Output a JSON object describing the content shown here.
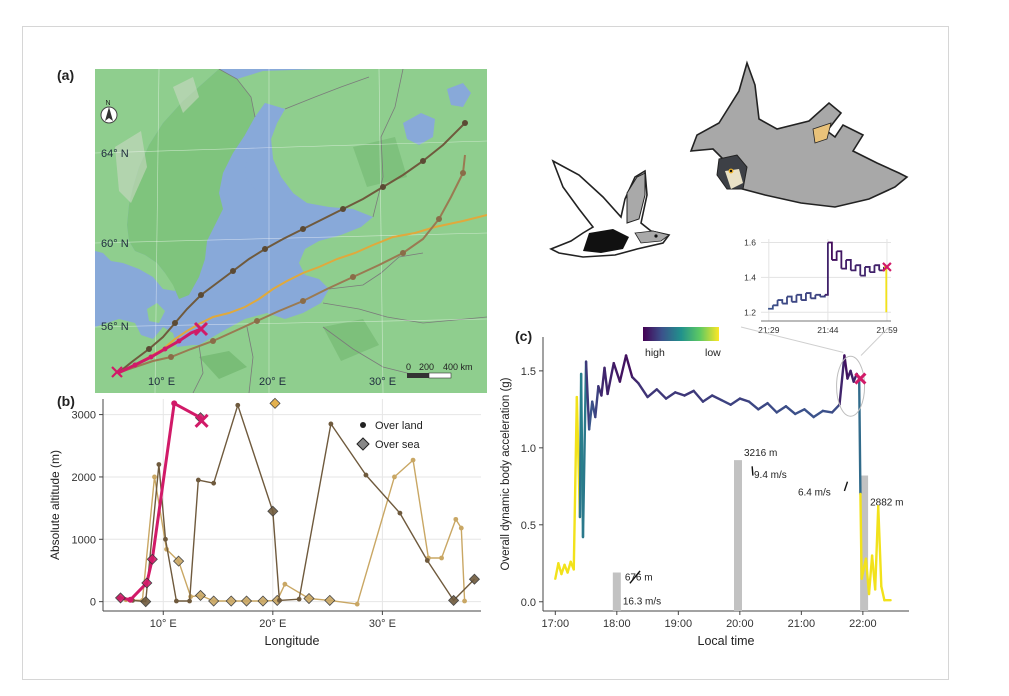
{
  "panels": {
    "a": {
      "label": "(a)",
      "lat_labels": [
        "64° N",
        "60° N",
        "56° N"
      ],
      "lon_labels": [
        "10° E",
        "20° E",
        "30° E"
      ],
      "scale": {
        "ticks": [
          "0",
          "200",
          "400 km"
        ]
      },
      "north_symbol": "N",
      "colors": {
        "water": "#88a9d9",
        "land": "#8fce8e",
        "land_dark": "#6bb268",
        "relief": "#c9d9c3"
      }
    },
    "b": {
      "label": "(b)"
    },
    "c": {
      "label": "(c)"
    }
  },
  "colors": {
    "magenta": "#d11a68",
    "brown_dark": "#6f5a3d",
    "brown": "#9a7a52",
    "tan": "#c9a764",
    "orange": "#e0a93c",
    "yellow": "#f2e21b",
    "bar": "#c2c2c2"
  },
  "chart_data": [
    {
      "type": "scatter",
      "panel": "b",
      "xlabel": "Longitude",
      "ylabel": "Absolute altitude (m)",
      "x_ticks": [
        "10° E",
        "20° E",
        "30° E"
      ],
      "xlim": [
        4.5,
        39
      ],
      "ylim": [
        -150,
        3250
      ],
      "y_ticks": [
        0,
        1000,
        2000,
        3000
      ],
      "grid": true,
      "legend": {
        "position": "top-right",
        "entries": [
          "Over land",
          "Over sea"
        ]
      },
      "series": [
        {
          "color": "#d11a68",
          "points": [
            [
              6.1,
              60,
              "sea"
            ],
            [
              7.0,
              30,
              "land"
            ],
            [
              8.5,
              300,
              "sea"
            ],
            [
              9.0,
              680,
              "sea"
            ],
            [
              11.0,
              3180,
              "land"
            ],
            [
              13.4,
              2950,
              "sea"
            ],
            [
              13.5,
              2900,
              "land"
            ]
          ]
        },
        {
          "color": "#6f5a3d",
          "points": [
            [
              6.0,
              60,
              "land"
            ],
            [
              7.2,
              20,
              "land"
            ],
            [
              8.4,
              0,
              "sea"
            ],
            [
              9.6,
              2200,
              "land"
            ],
            [
              10.2,
              1000,
              "land"
            ],
            [
              11.2,
              10,
              "land"
            ],
            [
              12.4,
              10,
              "land"
            ],
            [
              13.2,
              1950,
              "land"
            ],
            [
              14.6,
              1900,
              "land"
            ],
            [
              16.8,
              3150,
              "land"
            ],
            [
              20.0,
              1450,
              "sea"
            ],
            [
              20.6,
              20,
              "land"
            ],
            [
              22.4,
              40,
              "land"
            ],
            [
              25.3,
              2850,
              "land"
            ],
            [
              28.5,
              2030,
              "land"
            ],
            [
              31.6,
              1420,
              "land"
            ],
            [
              34.1,
              660,
              "land"
            ],
            [
              36.5,
              20,
              "sea"
            ],
            [
              38.4,
              360,
              "sea"
            ]
          ]
        },
        {
          "color": "#c9a764",
          "points": [
            [
              6.6,
              30,
              "land"
            ],
            [
              8.1,
              20,
              "land"
            ],
            [
              9.2,
              2000,
              "land"
            ],
            [
              10.3,
              840,
              "land"
            ],
            [
              11.4,
              650,
              "sea"
            ],
            [
              12.5,
              80,
              "land"
            ],
            [
              13.4,
              100,
              "sea"
            ],
            [
              14.6,
              10,
              "sea"
            ],
            [
              16.2,
              10,
              "sea"
            ],
            [
              17.6,
              10,
              "sea"
            ],
            [
              19.1,
              10,
              "sea"
            ],
            [
              20.4,
              20,
              "sea"
            ],
            [
              21.1,
              280,
              "land"
            ],
            [
              23.3,
              50,
              "sea"
            ],
            [
              25.2,
              20,
              "sea"
            ],
            [
              27.7,
              -40,
              "land"
            ],
            [
              31.1,
              2000,
              "land"
            ],
            [
              32.8,
              2270,
              "land"
            ],
            [
              34.2,
              700,
              "land"
            ],
            [
              35.4,
              700,
              "land"
            ],
            [
              36.7,
              1320,
              "land"
            ],
            [
              37.2,
              1180,
              "land"
            ],
            [
              37.5,
              10,
              "land"
            ]
          ]
        },
        {
          "color": "#e0a93c",
          "points": [
            [
              20.2,
              3180,
              "sea"
            ]
          ]
        }
      ]
    },
    {
      "type": "line",
      "panel": "c",
      "xlabel": "Local time",
      "ylabel": "Overall dynamic body acceleration (g)",
      "x_ticks": [
        "17:00",
        "18:00",
        "19:00",
        "20:00",
        "21:00",
        "22:00"
      ],
      "y_ticks": [
        "0.0",
        "0.5",
        "1.0",
        "1.5"
      ],
      "xlim": [
        16.8,
        22.75
      ],
      "ylim": [
        -0.06,
        1.72
      ],
      "colorbar": {
        "labels": [
          "high",
          "low"
        ]
      },
      "bars": [
        {
          "time": 18.0,
          "value": 0.19,
          "label": "676 m",
          "speed": "16.3 m/s"
        },
        {
          "time": 19.97,
          "value": 0.92,
          "label": "3216 m",
          "speed": "9.4 m/s"
        },
        {
          "time": 22.02,
          "value": 0.82,
          "label": "2882 m",
          "speed": "6.4 m/s"
        }
      ],
      "series": [
        {
          "color_scale": "viridis",
          "points": [
            [
              17.0,
              0.15
            ],
            [
              17.05,
              0.25
            ],
            [
              17.1,
              0.18
            ],
            [
              17.15,
              0.24
            ],
            [
              17.2,
              0.19
            ],
            [
              17.25,
              0.26
            ],
            [
              17.3,
              0.21
            ],
            [
              17.35,
              1.33
            ],
            [
              17.4,
              0.55
            ],
            [
              17.42,
              1.48
            ],
            [
              17.45,
              0.42
            ],
            [
              17.5,
              1.56
            ],
            [
              17.55,
              1.12
            ],
            [
              17.6,
              1.3
            ],
            [
              17.65,
              1.2
            ],
            [
              17.7,
              1.4
            ],
            [
              17.75,
              1.34
            ],
            [
              17.8,
              1.52
            ],
            [
              17.85,
              1.35
            ],
            [
              17.95,
              1.55
            ],
            [
              18.05,
              1.43
            ],
            [
              18.15,
              1.6
            ],
            [
              18.25,
              1.46
            ],
            [
              18.35,
              1.42
            ],
            [
              18.5,
              1.33
            ],
            [
              18.65,
              1.38
            ],
            [
              18.8,
              1.32
            ],
            [
              18.95,
              1.36
            ],
            [
              19.1,
              1.34
            ],
            [
              19.25,
              1.37
            ],
            [
              19.4,
              1.3
            ],
            [
              19.55,
              1.34
            ],
            [
              19.7,
              1.31
            ],
            [
              19.85,
              1.28
            ],
            [
              20.0,
              1.32
            ],
            [
              20.15,
              1.3
            ],
            [
              20.3,
              1.25
            ],
            [
              20.45,
              1.29
            ],
            [
              20.6,
              1.23
            ],
            [
              20.75,
              1.27
            ],
            [
              20.9,
              1.22
            ],
            [
              21.05,
              1.25
            ],
            [
              21.2,
              1.2
            ],
            [
              21.35,
              1.24
            ],
            [
              21.5,
              1.23
            ],
            [
              21.62,
              1.28
            ],
            [
              21.7,
              1.6
            ],
            [
              21.75,
              1.45
            ],
            [
              21.8,
              1.5
            ],
            [
              21.85,
              1.43
            ],
            [
              21.9,
              1.48
            ],
            [
              21.94,
              1.45
            ],
            [
              21.96,
              0.7
            ],
            [
              21.98,
              0.15
            ],
            [
              22.05,
              0.28
            ],
            [
              22.1,
              0.05
            ],
            [
              22.15,
              0.3
            ],
            [
              22.2,
              0.08
            ],
            [
              22.25,
              0.62
            ],
            [
              22.3,
              0.1
            ],
            [
              22.35,
              0.01
            ],
            [
              22.45,
              0.01
            ]
          ]
        }
      ],
      "inset": {
        "x_ticks": [
          "21:29",
          "21:44",
          "21:59"
        ],
        "y_ticks": [
          "1.2",
          "1.4",
          "1.6"
        ],
        "xlim": [
          21.45,
          22.0
        ],
        "ylim": [
          1.15,
          1.62
        ],
        "points": [
          [
            21.48,
            1.22
          ],
          [
            21.5,
            1.24
          ],
          [
            21.52,
            1.27
          ],
          [
            21.54,
            1.25
          ],
          [
            21.56,
            1.29
          ],
          [
            21.58,
            1.26
          ],
          [
            21.6,
            1.3
          ],
          [
            21.62,
            1.27
          ],
          [
            21.64,
            1.31
          ],
          [
            21.66,
            1.28
          ],
          [
            21.68,
            1.3
          ],
          [
            21.7,
            1.29
          ],
          [
            21.72,
            1.3
          ],
          [
            21.733,
            1.6
          ],
          [
            21.75,
            1.5
          ],
          [
            21.77,
            1.55
          ],
          [
            21.79,
            1.45
          ],
          [
            21.81,
            1.5
          ],
          [
            21.83,
            1.44
          ],
          [
            21.85,
            1.47
          ],
          [
            21.87,
            1.41
          ],
          [
            21.89,
            1.46
          ],
          [
            21.91,
            1.43
          ],
          [
            21.93,
            1.47
          ],
          [
            21.95,
            1.44
          ],
          [
            21.97,
            1.46
          ],
          [
            21.98,
            1.2
          ]
        ]
      }
    }
  ]
}
